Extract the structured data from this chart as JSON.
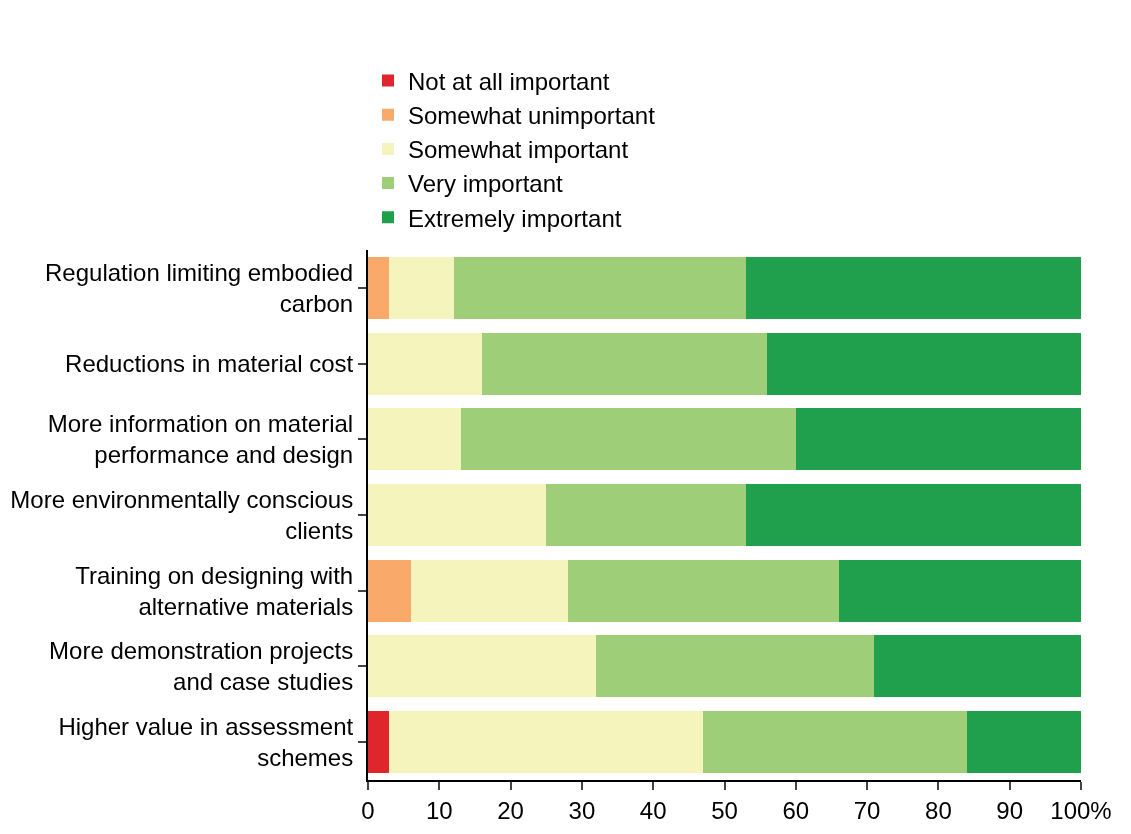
{
  "chart_data": {
    "type": "bar",
    "orientation": "horizontal",
    "stacked": true,
    "categories": [
      "Regulation limiting embodied carbon",
      "Reductions in material cost",
      "More information on material performance and design",
      "More environmentally conscious clients",
      "Training on designing with alternative materials",
      "More demonstration projects and case studies",
      "Higher value in assessment schemes"
    ],
    "series": [
      {
        "name": "Not at all important",
        "color": "#e0262d",
        "values": [
          0,
          0,
          0,
          0,
          0,
          0,
          3
        ]
      },
      {
        "name": "Somewhat unimportant",
        "color": "#f9a96a",
        "values": [
          3,
          0,
          0,
          0,
          6,
          0,
          0
        ]
      },
      {
        "name": "Somewhat important",
        "color": "#f6f4bd",
        "values": [
          9,
          16,
          13,
          25,
          22,
          32,
          44
        ]
      },
      {
        "name": "Very important",
        "color": "#9ecf78",
        "values": [
          41,
          40,
          47,
          28,
          38,
          39,
          37
        ]
      },
      {
        "name": "Extremely important",
        "color": "#209f4d",
        "values": [
          47,
          44,
          40,
          47,
          34,
          29,
          16
        ]
      }
    ],
    "xlim": [
      0,
      100
    ],
    "xticks": [
      0,
      10,
      20,
      30,
      40,
      50,
      60,
      70,
      80,
      90,
      {
        "value": 100,
        "label": "100%"
      }
    ],
    "grid": false,
    "legend": "top"
  }
}
